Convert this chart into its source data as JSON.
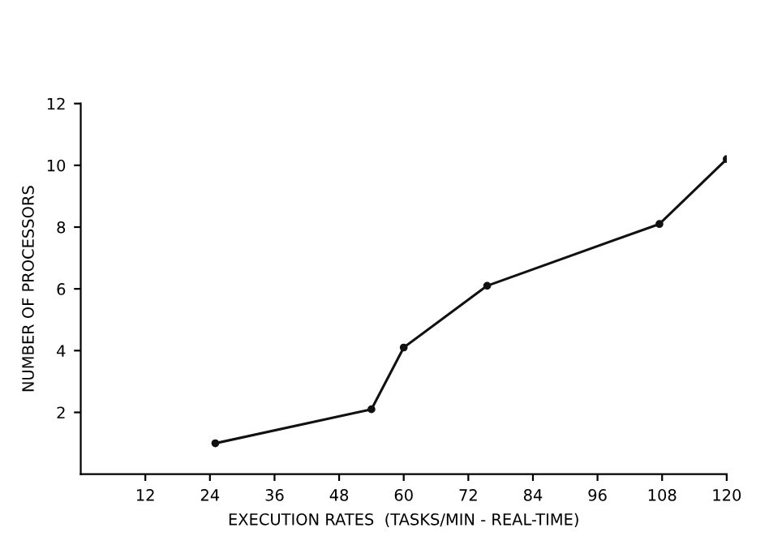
{
  "chart_data": {
    "type": "line",
    "xlabel": "EXECUTION RATES  (TASKS/MIN - REAL-TIME)",
    "ylabel": "NUMBER OF PROCESSORS",
    "x": [
      25,
      54,
      60,
      75.5,
      107.5,
      120
    ],
    "series": [
      {
        "color": "#111111",
        "values": [
          1.0,
          2.1,
          4.1,
          6.1,
          8.1,
          10.2
        ]
      }
    ],
    "xlim": [
      0,
      120
    ],
    "xticks": [
      12,
      24,
      36,
      48,
      60,
      72,
      84,
      96,
      108,
      120
    ],
    "ylim": [
      0,
      12
    ],
    "yticks": [
      2,
      4,
      6,
      8,
      10,
      12
    ],
    "grid": false,
    "legend": false,
    "marker": "circle",
    "line_style": "solid"
  }
}
